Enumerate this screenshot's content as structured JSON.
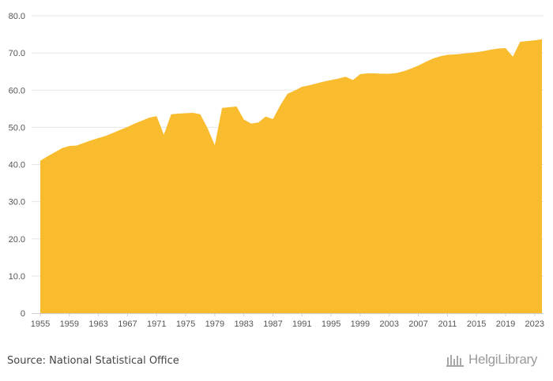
{
  "chart_data": {
    "type": "area",
    "title": "",
    "xlabel": "",
    "ylabel": "",
    "ylim": [
      0,
      80
    ],
    "yticks": [
      "0",
      "10.0",
      "20.0",
      "30.0",
      "40.0",
      "50.0",
      "60.0",
      "70.0",
      "80.0"
    ],
    "xtick_labels": [
      "1955",
      "1959",
      "1963",
      "1967",
      "1971",
      "1975",
      "1979",
      "1983",
      "1987",
      "1991",
      "1995",
      "1999",
      "2003",
      "2007",
      "2011",
      "2015",
      "2019",
      "2023"
    ],
    "grid": "horizontal",
    "legend": "none",
    "color": "#F9BC2F",
    "x": [
      1955,
      1956,
      1957,
      1958,
      1959,
      1960,
      1961,
      1962,
      1963,
      1964,
      1965,
      1966,
      1967,
      1968,
      1969,
      1970,
      1971,
      1972,
      1973,
      1974,
      1975,
      1976,
      1977,
      1978,
      1979,
      1980,
      1981,
      1982,
      1983,
      1984,
      1985,
      1986,
      1987,
      1988,
      1989,
      1990,
      1991,
      1992,
      1993,
      1994,
      1995,
      1996,
      1997,
      1998,
      1999,
      2000,
      2001,
      2002,
      2003,
      2004,
      2005,
      2006,
      2007,
      2008,
      2009,
      2010,
      2011,
      2012,
      2013,
      2014,
      2015,
      2016,
      2017,
      2018,
      2019,
      2020,
      2021,
      2022,
      2023,
      2024
    ],
    "values": [
      41.0,
      42.2,
      43.3,
      44.4,
      45.0,
      45.1,
      45.8,
      46.5,
      47.1,
      47.7,
      48.5,
      49.3,
      50.1,
      51.0,
      51.8,
      52.6,
      53.0,
      48.0,
      53.5,
      53.7,
      53.8,
      53.9,
      53.5,
      49.8,
      45.2,
      55.2,
      55.4,
      55.6,
      52.1,
      51.0,
      51.3,
      52.9,
      52.2,
      55.9,
      59.0,
      59.9,
      60.9,
      61.3,
      61.8,
      62.3,
      62.7,
      63.1,
      63.6,
      62.7,
      64.3,
      64.5,
      64.5,
      64.4,
      64.4,
      64.6,
      65.1,
      65.8,
      66.6,
      67.6,
      68.5,
      69.1,
      69.5,
      69.6,
      69.8,
      70.0,
      70.2,
      70.5,
      70.9,
      71.2,
      71.3,
      69.0,
      73.0,
      73.2,
      73.4,
      73.7
    ]
  },
  "footer": {
    "source": "Source: National Statistical Office",
    "brand": "HelgiLibrary"
  }
}
